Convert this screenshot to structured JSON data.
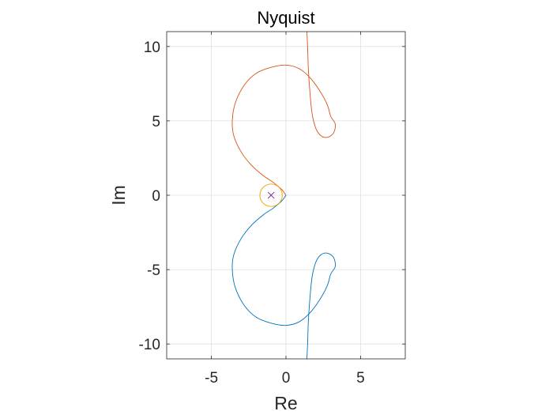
{
  "chart_data": {
    "type": "line",
    "title": "Nyquist",
    "xlabel": "Re",
    "ylabel": "Im",
    "xlim": [
      -8,
      8
    ],
    "ylim": [
      -11,
      11
    ],
    "xticks": [
      -5,
      0,
      5
    ],
    "yticks": [
      10,
      5,
      0,
      -5,
      -10
    ],
    "grid": true,
    "series": [
      {
        "color": "#0072BD",
        "points": [
          [
            0,
            0
          ],
          [
            -0.3,
            -0.4
          ],
          [
            -0.9,
            -0.9
          ],
          [
            -1.5,
            -1.3
          ],
          [
            -2.3,
            -2.0
          ],
          [
            -3.0,
            -2.9
          ],
          [
            -3.5,
            -4.0
          ],
          [
            -3.6,
            -5.0
          ],
          [
            -3.4,
            -6.2
          ],
          [
            -2.8,
            -7.4
          ],
          [
            -2.0,
            -8.2
          ],
          [
            -1.0,
            -8.6
          ],
          [
            0.0,
            -8.75
          ],
          [
            0.9,
            -8.5
          ],
          [
            1.7,
            -7.8
          ],
          [
            2.4,
            -6.8
          ],
          [
            2.8,
            -6.0
          ],
          [
            3.0,
            -5.3
          ],
          [
            3.3,
            -4.8
          ],
          [
            3.2,
            -4.2
          ],
          [
            2.8,
            -3.9
          ],
          [
            2.35,
            -4.0
          ],
          [
            2.0,
            -4.5
          ],
          [
            1.75,
            -5.5
          ],
          [
            1.6,
            -7.0
          ],
          [
            1.5,
            -8.5
          ],
          [
            1.45,
            -10.0
          ],
          [
            1.4,
            -11.0
          ]
        ]
      },
      {
        "color": "#D95319",
        "points": [
          [
            0,
            0
          ],
          [
            -0.3,
            0.4
          ],
          [
            -0.9,
            0.9
          ],
          [
            -1.5,
            1.3
          ],
          [
            -2.3,
            2.0
          ],
          [
            -3.0,
            2.9
          ],
          [
            -3.5,
            4.0
          ],
          [
            -3.6,
            5.0
          ],
          [
            -3.4,
            6.2
          ],
          [
            -2.8,
            7.4
          ],
          [
            -2.0,
            8.2
          ],
          [
            -1.0,
            8.6
          ],
          [
            0.0,
            8.75
          ],
          [
            0.9,
            8.5
          ],
          [
            1.7,
            7.8
          ],
          [
            2.4,
            6.8
          ],
          [
            2.8,
            6.0
          ],
          [
            3.0,
            5.3
          ],
          [
            3.3,
            4.8
          ],
          [
            3.2,
            4.2
          ],
          [
            2.8,
            3.9
          ],
          [
            2.35,
            4.0
          ],
          [
            2.0,
            4.5
          ],
          [
            1.75,
            5.5
          ],
          [
            1.6,
            7.0
          ],
          [
            1.5,
            8.5
          ],
          [
            1.45,
            10.0
          ],
          [
            1.4,
            11.0
          ]
        ]
      }
    ],
    "circle": {
      "center": [
        -1,
        0
      ],
      "radius": 0.75,
      "color": "#EDB120"
    },
    "marker": {
      "x": -1,
      "y": 0,
      "symbol": "x",
      "color": "#7E2F8E"
    }
  }
}
